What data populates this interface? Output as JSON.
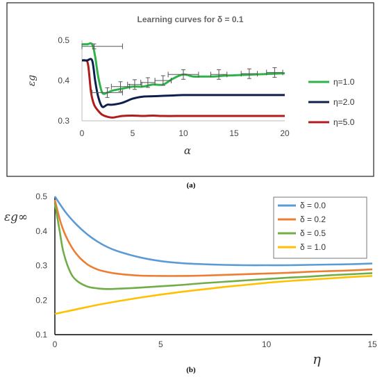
{
  "chart_data": [
    {
      "panel": "(a)",
      "type": "line",
      "title": "Learning curves for δ = 0.1",
      "xlabel": "α",
      "ylabel": "εg",
      "xlim": [
        0,
        20
      ],
      "ylim": [
        0.3,
        0.5
      ],
      "xticks": [
        "0",
        "5",
        "10",
        "15",
        "20"
      ],
      "yticks": [
        "0.3",
        "0.4",
        "0.5"
      ],
      "legend_position": "right",
      "grid": false,
      "series": [
        {
          "name": "η=1.0",
          "color": "#2db34a",
          "x": [
            0,
            0.5,
            1,
            1.3,
            1.6,
            2,
            2.5,
            3,
            4,
            5,
            6,
            7,
            8,
            9,
            10,
            11,
            12,
            13,
            14,
            15,
            16,
            17,
            18,
            19,
            20
          ],
          "y": [
            0.49,
            0.49,
            0.49,
            0.46,
            0.41,
            0.37,
            0.37,
            0.375,
            0.38,
            0.385,
            0.385,
            0.39,
            0.39,
            0.405,
            0.415,
            0.41,
            0.41,
            0.41,
            0.412,
            0.413,
            0.414,
            0.415,
            0.416,
            0.417,
            0.418
          ]
        },
        {
          "name": "η=2.0",
          "color": "#0d1f4d",
          "x": [
            0,
            0.5,
            1,
            1.3,
            1.6,
            2,
            2.5,
            3,
            4,
            5,
            6,
            7,
            8,
            9,
            10,
            12,
            14,
            16,
            18,
            20
          ],
          "y": [
            0.45,
            0.45,
            0.45,
            0.4,
            0.36,
            0.335,
            0.34,
            0.34,
            0.345,
            0.355,
            0.36,
            0.361,
            0.362,
            0.363,
            0.364,
            0.364,
            0.364,
            0.364,
            0.364,
            0.364
          ]
        },
        {
          "name": "η=5.0",
          "color": "#b01c1c",
          "x": [
            0,
            0.3,
            0.6,
            0.9,
            1.2,
            1.6,
            2,
            2.5,
            3,
            3.5,
            4,
            5,
            6,
            7,
            8,
            10,
            12,
            15,
            18,
            20
          ],
          "y": [
            0.45,
            0.45,
            0.44,
            0.37,
            0.34,
            0.325,
            0.315,
            0.31,
            0.308,
            0.31,
            0.312,
            0.313,
            0.312,
            0.313,
            0.312,
            0.312,
            0.312,
            0.312,
            0.312,
            0.312
          ]
        }
      ],
      "error_bars": {
        "series": "η=1.0",
        "points": [
          {
            "x": 1.2,
            "y": 0.485,
            "xerr": 2.8,
            "yerr": 0.006
          },
          {
            "x": 2.5,
            "y": 0.37,
            "xerr": 1.5,
            "yerr": 0.012
          },
          {
            "x": 3.8,
            "y": 0.385,
            "xerr": 0.9,
            "yerr": 0.012
          },
          {
            "x": 5.2,
            "y": 0.39,
            "xerr": 0.7,
            "yerr": 0.012
          },
          {
            "x": 6.5,
            "y": 0.395,
            "xerr": 0.7,
            "yerr": 0.012
          },
          {
            "x": 8.0,
            "y": 0.4,
            "xerr": 0.8,
            "yerr": 0.012
          },
          {
            "x": 10.0,
            "y": 0.415,
            "xerr": 1.5,
            "yerr": 0.012
          },
          {
            "x": 13.5,
            "y": 0.415,
            "xerr": 0.8,
            "yerr": 0.012
          },
          {
            "x": 16.5,
            "y": 0.417,
            "xerr": 0.8,
            "yerr": 0.012
          },
          {
            "x": 19.0,
            "y": 0.42,
            "xerr": 0.8,
            "yerr": 0.012
          }
        ]
      }
    },
    {
      "panel": "(b)",
      "type": "line",
      "title": "",
      "xlabel": "η",
      "ylabel": "εg∞",
      "xlim": [
        0,
        15
      ],
      "ylim": [
        0.1,
        0.5
      ],
      "xticks": [
        "0",
        "5",
        "10",
        "15"
      ],
      "yticks": [
        "0.1",
        "0.2",
        "0.3",
        "0.4",
        "0.5"
      ],
      "legend_position": "top-right",
      "grid": false,
      "series": [
        {
          "name": "δ = 0.0",
          "color": "#5b9bd5",
          "x": [
            0,
            0.5,
            1,
            1.5,
            2,
            2.5,
            3,
            4,
            5,
            6,
            7,
            8,
            9,
            10,
            11,
            12,
            13,
            14,
            15
          ],
          "y": [
            0.5,
            0.455,
            0.42,
            0.392,
            0.37,
            0.353,
            0.341,
            0.324,
            0.313,
            0.307,
            0.304,
            0.302,
            0.301,
            0.301,
            0.301,
            0.302,
            0.303,
            0.304,
            0.306
          ]
        },
        {
          "name": "δ = 0.2",
          "color": "#ed7d31",
          "x": [
            0,
            0.3,
            0.6,
            1,
            1.5,
            2,
            2.5,
            3,
            4,
            5,
            6,
            7,
            8,
            9,
            10,
            11,
            12,
            13,
            14,
            15
          ],
          "y": [
            0.49,
            0.42,
            0.375,
            0.335,
            0.305,
            0.289,
            0.281,
            0.276,
            0.271,
            0.27,
            0.27,
            0.271,
            0.273,
            0.275,
            0.277,
            0.279,
            0.282,
            0.284,
            0.286,
            0.289
          ]
        },
        {
          "name": "δ = 0.5",
          "color": "#70ad47",
          "x": [
            0,
            0.2,
            0.4,
            0.7,
            1,
            1.5,
            2,
            2.5,
            3,
            4,
            5,
            6,
            7,
            8,
            9,
            10,
            11,
            12,
            13,
            14,
            15
          ],
          "y": [
            0.48,
            0.41,
            0.34,
            0.285,
            0.258,
            0.24,
            0.234,
            0.232,
            0.233,
            0.236,
            0.24,
            0.244,
            0.249,
            0.253,
            0.257,
            0.261,
            0.265,
            0.268,
            0.272,
            0.275,
            0.278
          ]
        },
        {
          "name": "δ = 1.0",
          "color": "#ffc000",
          "x": [
            0,
            1,
            2,
            3,
            4,
            5,
            6,
            7,
            8,
            9,
            10,
            11,
            12,
            13,
            14,
            15
          ],
          "y": [
            0.16,
            0.173,
            0.186,
            0.197,
            0.207,
            0.216,
            0.224,
            0.231,
            0.238,
            0.244,
            0.25,
            0.255,
            0.259,
            0.263,
            0.267,
            0.27
          ]
        }
      ]
    }
  ]
}
